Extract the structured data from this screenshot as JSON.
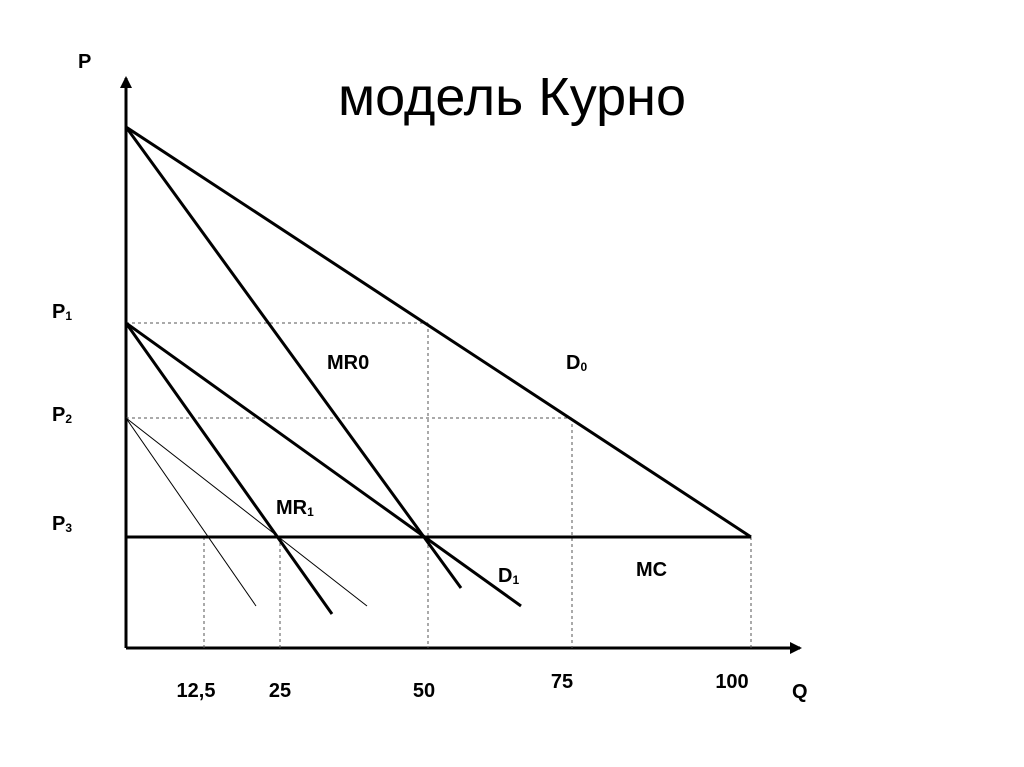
{
  "chart_data": {
    "type": "line",
    "title": "модель Курно",
    "y_axis_label": "P",
    "x_axis_label": "Q",
    "x_ticks": [
      "12,5",
      "25",
      "50",
      "75",
      "100"
    ],
    "y_ticks": [
      {
        "main": "P",
        "sub": "1"
      },
      {
        "main": "P",
        "sub": "2"
      },
      {
        "main": "P",
        "sub": "3"
      }
    ],
    "curve_labels": {
      "D0": {
        "main": "D",
        "sub": "0"
      },
      "MR0": {
        "main": "MR",
        "sub": "0"
      },
      "D1": {
        "main": "D",
        "sub": "1"
      },
      "MR1": {
        "main": "MR",
        "sub": "1"
      },
      "MC": {
        "main": "MC",
        "sub": ""
      }
    }
  }
}
